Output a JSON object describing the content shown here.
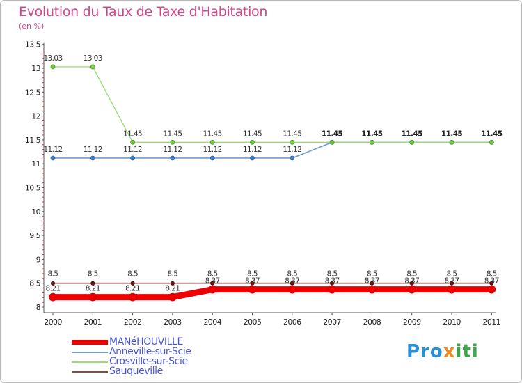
{
  "header": {
    "title": "Evolution du Taux de Taxe d'Habitation",
    "unit": "(en %)"
  },
  "chart_data": {
    "type": "line",
    "title": "Evolution du Taux de Taxe d'Habitation",
    "ylabel": "(en %)",
    "xlabel": "",
    "x": [
      "2000",
      "2001",
      "2002",
      "2003",
      "2004",
      "2005",
      "2006",
      "2007",
      "2008",
      "2009",
      "2010",
      "2011"
    ],
    "ylim": [
      8,
      13.5
    ],
    "yticks": [
      "8",
      "8.5",
      "9",
      "9.5",
      "10",
      "10.5",
      "11",
      "11.5",
      "12",
      "12.5",
      "13",
      "13.5"
    ],
    "grid": false,
    "legend": "bottom-left",
    "series": [
      {
        "name": "MANéHOUVILLE",
        "color": "#ee0000",
        "values": [
          8.21,
          8.21,
          8.21,
          8.21,
          8.37,
          8.37,
          8.37,
          8.37,
          8.37,
          8.37,
          8.37,
          8.37
        ]
      },
      {
        "name": "Anneville-sur-Scie",
        "color": "#6e9ecf",
        "values": [
          11.12,
          11.12,
          11.12,
          11.12,
          11.12,
          11.12,
          11.12,
          11.45,
          11.45,
          11.45,
          11.45,
          11.45
        ]
      },
      {
        "name": "Crosville-sur-Scie",
        "color": "#99dd77",
        "values": [
          13.03,
          13.03,
          11.45,
          11.45,
          11.45,
          11.45,
          11.45,
          11.45,
          11.45,
          11.45,
          11.45,
          11.45
        ]
      },
      {
        "name": "Sauqueville",
        "color": "#8b4a4a",
        "values": [
          8.5,
          8.5,
          8.5,
          8.5,
          8.5,
          8.5,
          8.5,
          8.5,
          8.5,
          8.5,
          8.5,
          8.5
        ]
      }
    ],
    "labels": {
      "MANéHOUVILLE": [
        "8.21",
        "8.21",
        "8.21",
        "8.21",
        "8.37",
        "8.37",
        "8.37",
        "8.37",
        "8.37",
        "8.37",
        "8.37",
        "8.37"
      ],
      "Anneville-sur-Scie": [
        "11.12",
        "11.12",
        "11.12",
        "11.12",
        "11.12",
        "11.12",
        "11.12",
        "",
        "",
        "",
        "",
        ""
      ],
      "Crosville-sur-Scie": [
        "13.03",
        "13.03",
        "11.45",
        "11.45",
        "11.45",
        "11.45",
        "11.45",
        "11.45",
        "11.45",
        "11.45",
        "11.45",
        "11.45"
      ],
      "Sauqueville": [
        "8.5",
        "8.5",
        "8.5",
        "8.5",
        "8.5",
        "8.5",
        "8.5",
        "8.5",
        "8.5",
        "8.5",
        "8.5",
        "8.5"
      ]
    }
  },
  "legend": {
    "items": [
      {
        "label": "MANéHOUVILLE",
        "color": "#ee0000"
      },
      {
        "label": "Anneville-sur-Scie",
        "color": "#6e9ecf"
      },
      {
        "label": "Crosville-sur-Scie",
        "color": "#99dd77"
      },
      {
        "label": "Sauqueville",
        "color": "#8b4a4a"
      }
    ]
  },
  "logo": {
    "part1": "Pro",
    "part2": "x",
    "part3": "iti"
  }
}
